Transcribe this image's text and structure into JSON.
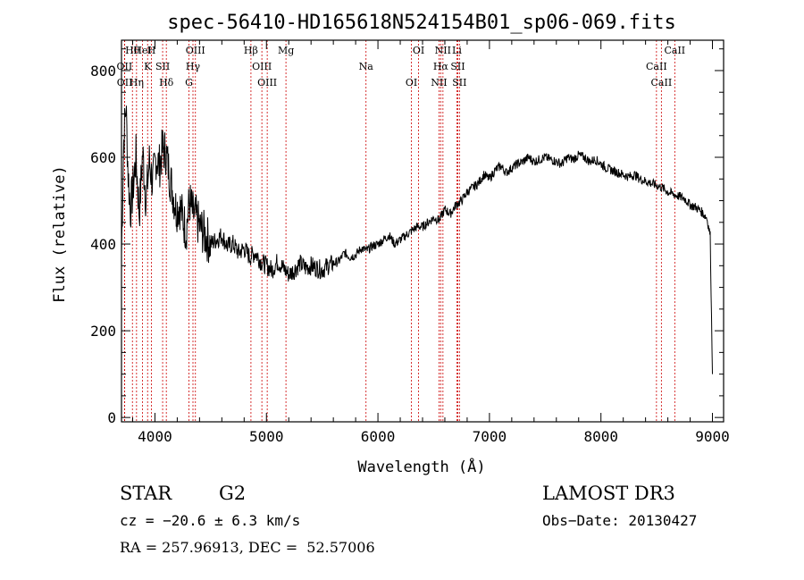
{
  "chart_data": {
    "type": "line",
    "title": "spec-56410-HD165618N524154B01_sp06-069.fits",
    "xlabel": "Wavelength (Å)",
    "ylabel": "Flux (relative)",
    "xlim": [
      3700,
      9100
    ],
    "ylim": [
      -10,
      870
    ],
    "xticks": [
      4000,
      5000,
      6000,
      7000,
      8000,
      9000
    ],
    "yticks": [
      0,
      200,
      400,
      600,
      800
    ],
    "line_color": "#000000",
    "marker_color": "#cc0000",
    "series": [
      {
        "x": [
          3700,
          3720,
          3740,
          3760,
          3780,
          3800,
          3830,
          3860,
          3890,
          3920,
          3950,
          3980,
          4010,
          4040,
          4070,
          4100,
          4130,
          4160,
          4190,
          4220,
          4250,
          4280,
          4310,
          4340,
          4370,
          4400,
          4450,
          4500,
          4550,
          4600,
          4650,
          4700,
          4750,
          4800,
          4850,
          4900,
          4950,
          5000,
          5050,
          5100,
          5150,
          5200,
          5250,
          5300,
          5350,
          5400,
          5450,
          5500,
          5550,
          5600,
          5650,
          5700,
          5750,
          5800,
          5850,
          5900,
          5950,
          6000,
          6050,
          6100,
          6150,
          6200,
          6250,
          6300,
          6350,
          6400,
          6450,
          6500,
          6550,
          6600,
          6650,
          6700,
          6750,
          6800,
          6850,
          6900,
          6950,
          7000,
          7050,
          7100,
          7150,
          7200,
          7250,
          7300,
          7350,
          7400,
          7450,
          7500,
          7550,
          7600,
          7650,
          7700,
          7750,
          7800,
          7850,
          7900,
          7950,
          8000,
          8050,
          8100,
          8150,
          8200,
          8250,
          8300,
          8350,
          8400,
          8450,
          8500,
          8550,
          8600,
          8650,
          8700,
          8750,
          8800,
          8850,
          8900,
          8950,
          8980,
          9000
        ],
        "y": [
          380,
          640,
          720,
          560,
          480,
          520,
          600,
          470,
          610,
          500,
          590,
          540,
          600,
          580,
          620,
          610,
          560,
          520,
          480,
          490,
          460,
          430,
          500,
          470,
          460,
          440,
          420,
          400,
          410,
          420,
          395,
          400,
          380,
          390,
          370,
          380,
          360,
          350,
          340,
          360,
          345,
          330,
          340,
          355,
          345,
          350,
          345,
          340,
          350,
          355,
          360,
          380,
          370,
          375,
          390,
          385,
          395,
          400,
          410,
          420,
          400,
          410,
          420,
          430,
          440,
          440,
          450,
          460,
          455,
          480,
          470,
          490,
          500,
          520,
          530,
          540,
          560,
          550,
          570,
          580,
          565,
          575,
          585,
          590,
          600,
          590,
          595,
          600,
          595,
          590,
          585,
          600,
          595,
          605,
          600,
          590,
          595,
          585,
          575,
          570,
          565,
          560,
          555,
          560,
          550,
          545,
          540,
          535,
          530,
          520,
          515,
          510,
          505,
          490,
          485,
          475,
          460,
          420,
          100
        ]
      }
    ],
    "lines": [
      {
        "label": "Hθ",
        "x": 3798
      },
      {
        "label": "OII",
        "x": 3727
      },
      {
        "label": "OII",
        "x": 3729
      },
      {
        "label": "HeI",
        "x": 3889
      },
      {
        "label": "K",
        "x": 3934
      },
      {
        "label": "Hη",
        "x": 3835
      },
      {
        "label": "H",
        "x": 3969
      },
      {
        "label": "SII",
        "x": 4069
      },
      {
        "label": "Hδ",
        "x": 4102
      },
      {
        "label": "OIII",
        "x": 4363
      },
      {
        "label": "Hγ",
        "x": 4341
      },
      {
        "label": "G",
        "x": 4305
      },
      {
        "label": "Hβ",
        "x": 4861
      },
      {
        "label": "OIII",
        "x": 4959
      },
      {
        "label": "OIII",
        "x": 5007
      },
      {
        "label": "Mg",
        "x": 5175
      },
      {
        "label": "Na",
        "x": 5893
      },
      {
        "label": "OI",
        "x": 6300
      },
      {
        "label": "OI",
        "x": 6364
      },
      {
        "label": "Hα",
        "x": 6563
      },
      {
        "label": "NII",
        "x": 6548
      },
      {
        "label": "NII",
        "x": 6583
      },
      {
        "label": "SII",
        "x": 6716
      },
      {
        "label": "SII",
        "x": 6731
      },
      {
        "label": "Li",
        "x": 6708
      },
      {
        "label": "CaII",
        "x": 8498
      },
      {
        "label": "CaII",
        "x": 8542
      },
      {
        "label": "CaII",
        "x": 8662
      }
    ]
  },
  "info": {
    "class_label": "STAR",
    "subclass": "G2",
    "survey": "LAMOST DR3",
    "cz": "cz = −20.6 ± 6.3 km/s",
    "obs_date": "Obs−Date: 20130427",
    "coords": "RA = 257.96913, DEC =  52.57006"
  }
}
